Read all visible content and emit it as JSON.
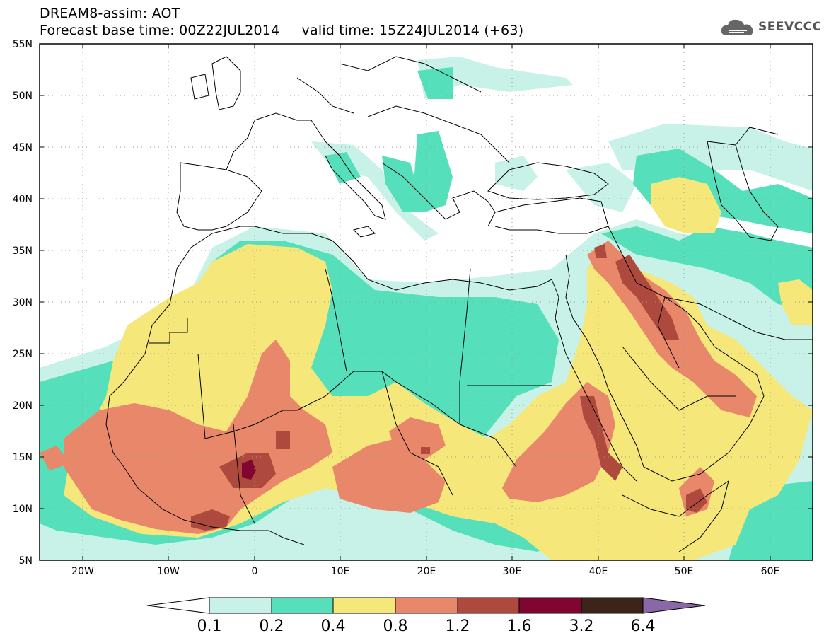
{
  "header": {
    "line1": "DREAM8-assim: AOT",
    "line2": "Forecast base time: 00Z22JUL2014     valid time: 15Z24JUL2014 (+63)"
  },
  "logo": {
    "text": "SEEVCCC",
    "icon": "cloud-icon",
    "color": "#555555"
  },
  "map": {
    "lon_range": [
      -25,
      65
    ],
    "lat_range": [
      5,
      55
    ],
    "lat_labels": [
      "55N",
      "50N",
      "45N",
      "40N",
      "35N",
      "30N",
      "25N",
      "20N",
      "15N",
      "10N",
      "5N"
    ],
    "lon_labels": [
      "20W",
      "10W",
      "0",
      "10E",
      "20E",
      "30E",
      "40E",
      "50E",
      "60E"
    ]
  },
  "colorbar": {
    "labels": [
      "0.1",
      "0.2",
      "0.4",
      "0.8",
      "1.2",
      "1.6",
      "3.2",
      "6.4"
    ],
    "colors": [
      "#ffffff",
      "#c8f2e8",
      "#55e0bb",
      "#f5e77a",
      "#e8876a",
      "#ae4a3d",
      "#800530",
      "#3c2418",
      "#8a68a8"
    ]
  }
}
